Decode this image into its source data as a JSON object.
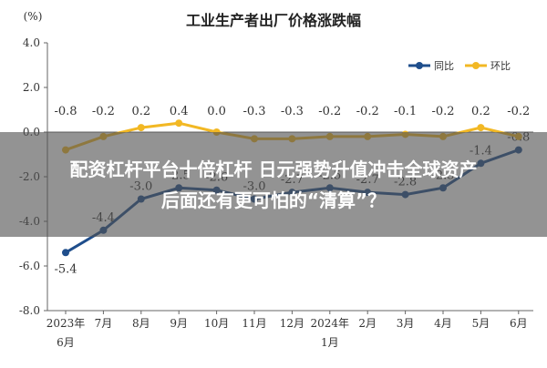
{
  "chart_data": {
    "type": "line",
    "title": "工业生产者出厂价格涨跌幅",
    "ylabel": "(%)",
    "ylim": [
      -8.0,
      4.0
    ],
    "ytick_labels": [
      "4.0",
      "2.0",
      "0.0",
      "-2.0",
      "-4.0",
      "-6.0",
      "-8.0"
    ],
    "ytick_values": [
      4,
      2,
      0,
      -2,
      -4,
      -6,
      -8
    ],
    "categories": [
      "2023年\n6月",
      "7月",
      "8月",
      "9月",
      "10月",
      "11月",
      "12月",
      "2024年\n1月",
      "2月",
      "3月",
      "4月",
      "5月",
      "6月"
    ],
    "series": [
      {
        "name": "同比",
        "color": "#1f4e8c",
        "values": [
          -5.4,
          -4.4,
          -3.0,
          -2.5,
          -2.6,
          -3.0,
          -2.7,
          -2.5,
          -2.7,
          -2.8,
          -2.5,
          -1.4,
          -0.8
        ],
        "labels": [
          "-5.4",
          "-4.4",
          "-3.0",
          "-2.5",
          "-2.6",
          "-3.0",
          "-2.7",
          "-2.5",
          "-2.7",
          "-2.8",
          "-2.5",
          "-1.4",
          "-0.8"
        ]
      },
      {
        "name": "环比",
        "color": "#f2b824",
        "values": [
          -0.8,
          -0.2,
          0.2,
          0.4,
          0.0,
          -0.3,
          -0.3,
          -0.2,
          -0.2,
          -0.1,
          -0.2,
          0.2,
          -0.2
        ],
        "labels": [
          "-0.8",
          "-0.2",
          "0.2",
          "0.4",
          "0.0",
          "-0.3",
          "-0.3",
          "-0.2",
          "-0.2",
          "-0.1",
          "-0.2",
          "0.2",
          "-0.2"
        ]
      }
    ],
    "legend_position": "top-right",
    "grid": false
  },
  "overlay": {
    "line1": "配资杠杆平台十倍杠杆 日元强势升值冲击全球资产",
    "line2": "后面还有更可怕的“清算”？"
  }
}
